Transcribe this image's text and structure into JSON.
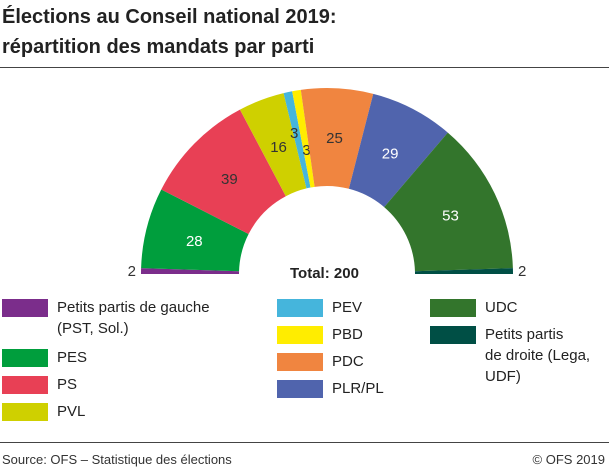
{
  "title_line1": "Élections au Conseil national 2019:",
  "title_line2": "répartition des mandats par parti",
  "chart_data": {
    "type": "pie",
    "subtype": "semicircle-donut",
    "total_label": "Total: 200",
    "total": 200,
    "categories": [
      "Petits partis de gauche (PST, Sol.)",
      "PES",
      "PS",
      "PVL",
      "PEV",
      "PBD",
      "PDC",
      "PLR/PL",
      "UDC",
      "Petits partis de droite (Lega, UDF)"
    ],
    "values": [
      2,
      28,
      39,
      16,
      3,
      3,
      25,
      29,
      53,
      2
    ],
    "colors": [
      "#7b2d8b",
      "#009e3d",
      "#e84055",
      "#cfd000",
      "#45b5dc",
      "#ffed00",
      "#f08540",
      "#5064ad",
      "#33752c",
      "#004f45"
    ],
    "legend": [
      {
        "label": "Petits partis de gauche",
        "label2": "(PST, Sol.)",
        "color": "#7b2d8b"
      },
      {
        "label": "PES",
        "color": "#009e3d"
      },
      {
        "label": "PS",
        "color": "#e84055"
      },
      {
        "label": "PVL",
        "color": "#cfd000"
      },
      {
        "label": "PEV",
        "color": "#45b5dc"
      },
      {
        "label": "PBD",
        "color": "#ffed00"
      },
      {
        "label": "PDC",
        "color": "#f08540"
      },
      {
        "label": "PLR/PL",
        "color": "#5064ad"
      },
      {
        "label": "UDC",
        "color": "#33752c"
      },
      {
        "label": "Petits partis",
        "label2": "de droite (Lega,",
        "label3": "UDF)",
        "color": "#004f45"
      }
    ]
  },
  "source": "Source: OFS – Statistique des élections",
  "copyright": "© OFS 2019"
}
